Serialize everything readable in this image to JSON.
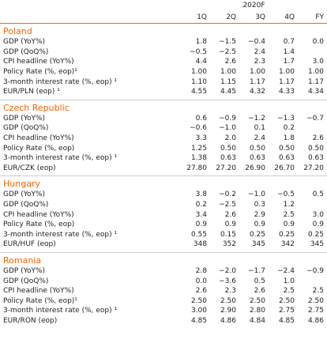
{
  "header": {
    "group": "2020F",
    "columns": [
      "1Q",
      "2Q",
      "3Q",
      "4Q",
      "FY"
    ]
  },
  "sections": [
    {
      "name": "Poland",
      "rows": [
        {
          "label": "GDP (YoY%)",
          "values": [
            "1.8",
            "−1.5",
            "−0.4",
            "0.7",
            "0.0"
          ]
        },
        {
          "label": "GDP (QoQ%)",
          "values": [
            "−0.5",
            "−2.5",
            "2.4",
            "1.4",
            null
          ]
        },
        {
          "label": "CPI headline (YoY%)",
          "values": [
            "4.4",
            "2.6",
            "2.3",
            "1.7",
            "3.0"
          ]
        },
        {
          "label": "Policy Rate (%, eop)¹",
          "values": [
            "1.00",
            "1.00",
            "1.00",
            "1.00",
            "1.00"
          ]
        },
        {
          "label": "3-month interest rate (%, eop) ¹",
          "values": [
            "1.10",
            "1.15",
            "1.17",
            "1.17",
            "1.17"
          ]
        },
        {
          "label": "EUR/PLN (eop) ¹",
          "values": [
            "4.55",
            "4.45",
            "4.32",
            "4.33",
            "4.34"
          ]
        }
      ]
    },
    {
      "name": "Czech Republic",
      "rows": [
        {
          "label": "GDP (YoY%)",
          "values": [
            "0.6",
            "−0.9",
            "−1.2",
            "−1.3",
            "−0.7"
          ]
        },
        {
          "label": "GDP (QoQ%)",
          "values": [
            "−0.6",
            "−1.0",
            "0.1",
            "0.2",
            null
          ]
        },
        {
          "label": "CPI headline (YoY%)",
          "values": [
            "3.3",
            "2.0",
            "2.4",
            "1.8",
            "2.6"
          ]
        },
        {
          "label": "Policy Rate (%, eop)",
          "values": [
            "1.25",
            "0.50",
            "0.50",
            "0.50",
            "0.50"
          ]
        },
        {
          "label": "3-month interest rate (%, eop) ¹",
          "values": [
            "1.38",
            "0.63",
            "0.63",
            "0.63",
            "0.63"
          ]
        },
        {
          "label": "EUR/CZK (eop)",
          "values": [
            "27.80",
            "27.20",
            "26.90",
            "26.70",
            "27.20"
          ]
        }
      ]
    },
    {
      "name": "Hungary",
      "rows": [
        {
          "label": "GDP (YoY%)",
          "values": [
            "3.8",
            "−0.2",
            "−1.0",
            "−0.5",
            "0.5"
          ]
        },
        {
          "label": "GDP (QoQ%)",
          "values": [
            "0.2",
            "−2.5",
            "0.3",
            "1.2",
            null
          ]
        },
        {
          "label": "CPI headline (YoY%)",
          "values": [
            "3.4",
            "2.6",
            "2.9",
            "2.5",
            "3.0"
          ]
        },
        {
          "label": "Policy Rate (%, eop)",
          "values": [
            "0.9",
            "0.9",
            "0.9",
            "0.9",
            "0.9"
          ]
        },
        {
          "label": "3-month interest rate (%, eop) ¹",
          "values": [
            "0.55",
            "0.15",
            "0.25",
            "0.25",
            "0.25"
          ]
        },
        {
          "label": "EUR/HUF (eop)",
          "values": [
            "348",
            "352",
            "345",
            "342",
            "345"
          ]
        }
      ]
    },
    {
      "name": "Romania",
      "rows": [
        {
          "label": "GDP (YoY%)",
          "values": [
            "2.8",
            "−2.0",
            "−1.7",
            "−2.4",
            "−0.9"
          ]
        },
        {
          "label": "GDP (QoQ%)",
          "values": [
            "0.0",
            "−3.6",
            "0.5",
            "1.0",
            null
          ]
        },
        {
          "label": "CPI headline (YoY%)",
          "values": [
            "2.6",
            "2.3",
            "2.6",
            "2.5",
            "2.5"
          ]
        },
        {
          "label": "Policy Rate (%, eop)¹",
          "values": [
            "2.50",
            "2.50",
            "2.50",
            "2.50",
            "2.50"
          ]
        },
        {
          "label": "3-month interest rate (%, eop) ¹",
          "values": [
            "3.00",
            "2.90",
            "2.80",
            "2.75",
            "2.75"
          ]
        },
        {
          "label": "EUR/RON (eop)",
          "values": [
            "4.85",
            "4.86",
            "4.84",
            "4.85",
            "4.86"
          ]
        }
      ]
    }
  ]
}
